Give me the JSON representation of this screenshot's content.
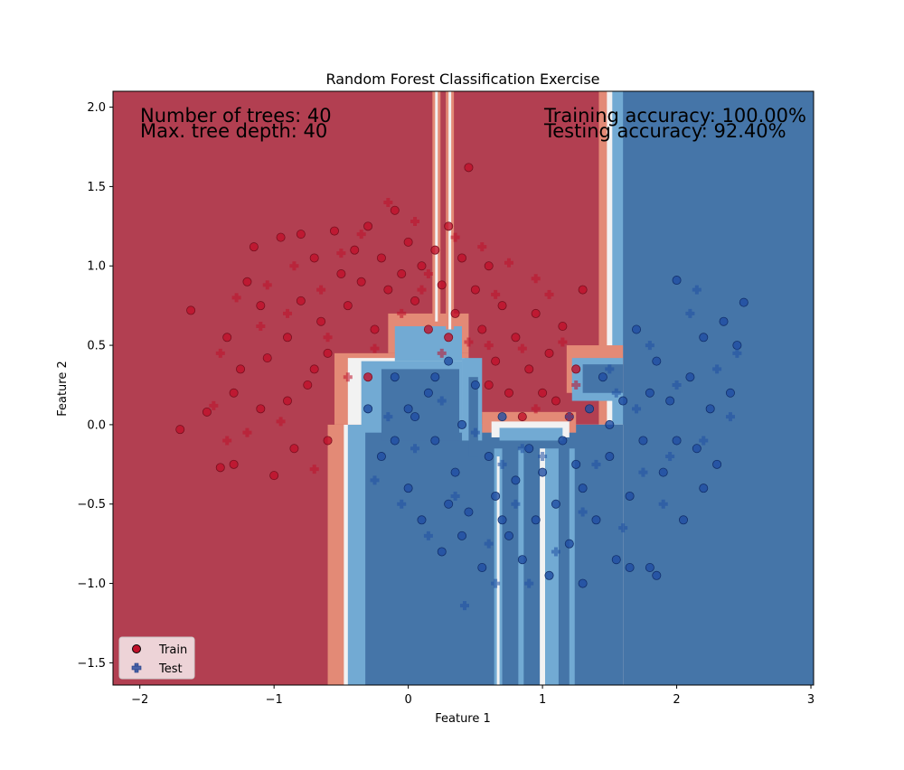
{
  "chart_data": {
    "type": "scatter",
    "title": "Random Forest Classification Exercise",
    "xlabel": "Feature 1",
    "ylabel": "Feature 2",
    "xlim": [
      -2.2,
      3.02
    ],
    "ylim": [
      -1.64,
      2.1
    ],
    "x_ticks": [
      -2,
      -1,
      0,
      1,
      2,
      3
    ],
    "x_tick_labels": [
      "−2",
      "−1",
      "0",
      "1",
      "2",
      "3"
    ],
    "y_ticks": [
      -1.5,
      -1.0,
      -0.5,
      0.0,
      0.5,
      1.0,
      1.5,
      2.0
    ],
    "y_tick_labels": [
      "−1.5",
      "−1.0",
      "−0.5",
      "0.0",
      "0.5",
      "1.0",
      "1.5",
      "2.0"
    ],
    "grid": false,
    "legend_position": "lower-left",
    "annotations": {
      "trees": "Number of trees: 40",
      "depth": "Max. tree depth: 40",
      "train_acc": "Training accuracy: 100.00%",
      "test_acc": "Testing accuracy: 92.40%"
    },
    "colors": {
      "red_region": "#b23f51",
      "blue_region": "#4575a8",
      "red_point": "#c0102a",
      "blue_point": "#1f4ea3",
      "light_red": "#e38a76",
      "light_blue": "#72aad3",
      "white_band": "#f2f2f2"
    },
    "series": [
      {
        "name": "Train",
        "marker": "circle",
        "class0_points": [
          [
            -1.7,
            -0.03
          ],
          [
            -1.62,
            0.72
          ],
          [
            -1.5,
            0.08
          ],
          [
            -1.4,
            -0.27
          ],
          [
            -1.35,
            0.55
          ],
          [
            -1.3,
            -0.25
          ],
          [
            -1.25,
            0.35
          ],
          [
            -1.2,
            0.9
          ],
          [
            -1.15,
            1.12
          ],
          [
            -1.1,
            0.1
          ],
          [
            -1.05,
            0.42
          ],
          [
            -1.0,
            -0.32
          ],
          [
            -0.95,
            1.18
          ],
          [
            -0.9,
            0.55
          ],
          [
            -0.85,
            -0.15
          ],
          [
            -0.8,
            0.78
          ],
          [
            -0.75,
            0.25
          ],
          [
            -0.7,
            1.05
          ],
          [
            -0.65,
            0.65
          ],
          [
            -0.6,
            0.45
          ],
          [
            -0.55,
            1.22
          ],
          [
            -0.5,
            0.95
          ],
          [
            -0.45,
            0.75
          ],
          [
            -0.4,
            1.1
          ],
          [
            -0.35,
            0.9
          ],
          [
            -0.3,
            1.25
          ],
          [
            -0.25,
            0.6
          ],
          [
            -0.2,
            1.05
          ],
          [
            -0.15,
            0.85
          ],
          [
            -0.1,
            1.35
          ],
          [
            -0.05,
            0.95
          ],
          [
            0.0,
            1.15
          ],
          [
            0.05,
            0.78
          ],
          [
            0.1,
            1.0
          ],
          [
            0.15,
            0.6
          ],
          [
            0.2,
            1.1
          ],
          [
            0.25,
            0.88
          ],
          [
            0.3,
            1.25
          ],
          [
            0.35,
            0.7
          ],
          [
            0.4,
            1.05
          ],
          [
            0.45,
            1.62
          ],
          [
            0.5,
            0.85
          ],
          [
            0.55,
            0.6
          ],
          [
            0.6,
            1.0
          ],
          [
            0.65,
            0.4
          ],
          [
            0.7,
            0.75
          ],
          [
            0.75,
            0.2
          ],
          [
            0.8,
            0.55
          ],
          [
            0.85,
            0.05
          ],
          [
            0.9,
            0.35
          ],
          [
            0.95,
            0.7
          ],
          [
            1.0,
            0.2
          ],
          [
            1.05,
            0.45
          ],
          [
            1.1,
            0.15
          ],
          [
            1.15,
            0.62
          ],
          [
            1.2,
            0.05
          ],
          [
            1.25,
            0.35
          ],
          [
            1.3,
            0.85
          ],
          [
            -0.9,
            0.15
          ],
          [
            -1.1,
            0.75
          ],
          [
            -0.6,
            -0.1
          ],
          [
            -0.3,
            0.3
          ],
          [
            -0.8,
            1.2
          ],
          [
            0.3,
            0.55
          ],
          [
            0.6,
            0.25
          ],
          [
            -1.3,
            0.2
          ],
          [
            -0.7,
            0.35
          ]
        ],
        "class1_points": [
          [
            -0.3,
            0.1
          ],
          [
            -0.2,
            -0.2
          ],
          [
            -0.1,
            0.3
          ],
          [
            0.0,
            -0.4
          ],
          [
            0.05,
            0.05
          ],
          [
            0.1,
            -0.6
          ],
          [
            0.15,
            0.2
          ],
          [
            0.2,
            -0.1
          ],
          [
            0.25,
            -0.8
          ],
          [
            0.3,
            0.4
          ],
          [
            0.35,
            -0.3
          ],
          [
            0.4,
            0.0
          ],
          [
            0.45,
            -0.55
          ],
          [
            0.5,
            0.25
          ],
          [
            0.55,
            -0.9
          ],
          [
            0.6,
            -0.2
          ],
          [
            0.65,
            -0.45
          ],
          [
            0.7,
            0.05
          ],
          [
            0.75,
            -0.7
          ],
          [
            0.8,
            -0.35
          ],
          [
            0.85,
            -0.85
          ],
          [
            0.9,
            -0.15
          ],
          [
            0.95,
            -0.6
          ],
          [
            1.0,
            -0.3
          ],
          [
            1.05,
            -0.95
          ],
          [
            1.1,
            -0.5
          ],
          [
            1.15,
            -0.1
          ],
          [
            1.2,
            -0.75
          ],
          [
            1.25,
            -0.25
          ],
          [
            1.3,
            -0.4
          ],
          [
            1.35,
            0.1
          ],
          [
            1.4,
            -0.6
          ],
          [
            1.45,
            0.3
          ],
          [
            1.5,
            -0.2
          ],
          [
            1.55,
            -0.85
          ],
          [
            1.6,
            0.15
          ],
          [
            1.65,
            -0.45
          ],
          [
            1.7,
            0.6
          ],
          [
            1.75,
            -0.1
          ],
          [
            1.8,
            -0.9
          ],
          [
            1.85,
            0.4
          ],
          [
            1.9,
            -0.3
          ],
          [
            1.95,
            0.15
          ],
          [
            2.0,
            0.91
          ],
          [
            2.05,
            -0.6
          ],
          [
            2.1,
            0.3
          ],
          [
            2.15,
            -0.15
          ],
          [
            2.2,
            0.55
          ],
          [
            2.25,
            0.1
          ],
          [
            2.3,
            -0.25
          ],
          [
            2.35,
            0.65
          ],
          [
            2.4,
            0.2
          ],
          [
            2.45,
            0.5
          ],
          [
            2.5,
            0.77
          ],
          [
            -0.1,
            -0.1
          ],
          [
            0.2,
            0.3
          ],
          [
            0.7,
            -0.6
          ],
          [
            1.3,
            -1.0
          ],
          [
            1.85,
            -0.95
          ],
          [
            1.65,
            -0.9
          ],
          [
            2.2,
            -0.4
          ],
          [
            0.0,
            0.1
          ],
          [
            0.4,
            -0.7
          ],
          [
            1.5,
            0.0
          ],
          [
            1.8,
            0.2
          ],
          [
            2.0,
            -0.1
          ],
          [
            0.3,
            -0.5
          ]
        ]
      },
      {
        "name": "Test",
        "marker": "plus",
        "class0_points": [
          [
            -1.45,
            0.12
          ],
          [
            -1.4,
            0.45
          ],
          [
            -1.28,
            0.8
          ],
          [
            -1.2,
            -0.05
          ],
          [
            -1.1,
            0.62
          ],
          [
            -1.05,
            0.88
          ],
          [
            -0.95,
            0.02
          ],
          [
            -0.85,
            1.0
          ],
          [
            -0.7,
            -0.28
          ],
          [
            -0.65,
            0.85
          ],
          [
            -0.5,
            1.08
          ],
          [
            -0.45,
            0.3
          ],
          [
            -0.35,
            1.2
          ],
          [
            -0.25,
            0.48
          ],
          [
            -0.15,
            1.4
          ],
          [
            -0.05,
            0.7
          ],
          [
            0.05,
            1.28
          ],
          [
            0.15,
            0.95
          ],
          [
            0.25,
            0.45
          ],
          [
            0.35,
            1.18
          ],
          [
            0.45,
            0.52
          ],
          [
            0.55,
            1.12
          ],
          [
            0.65,
            0.82
          ],
          [
            0.75,
            1.02
          ],
          [
            0.85,
            0.48
          ],
          [
            0.95,
            0.92
          ],
          [
            1.05,
            0.82
          ],
          [
            1.15,
            0.52
          ],
          [
            1.25,
            0.25
          ],
          [
            -1.35,
            -0.1
          ],
          [
            -0.9,
            0.7
          ],
          [
            -0.6,
            0.55
          ],
          [
            0.1,
            0.85
          ],
          [
            0.6,
            0.5
          ],
          [
            0.95,
            0.1
          ]
        ],
        "class1_points": [
          [
            -0.25,
            -0.35
          ],
          [
            -0.15,
            0.05
          ],
          [
            -0.05,
            -0.5
          ],
          [
            0.05,
            -0.15
          ],
          [
            0.15,
            -0.7
          ],
          [
            0.25,
            0.15
          ],
          [
            0.35,
            -0.45
          ],
          [
            0.42,
            -1.14
          ],
          [
            0.5,
            -0.05
          ],
          [
            0.6,
            -0.75
          ],
          [
            0.7,
            -0.25
          ],
          [
            0.8,
            -0.5
          ],
          [
            0.9,
            -1.0
          ],
          [
            1.0,
            -0.2
          ],
          [
            1.1,
            -0.8
          ],
          [
            1.2,
            0.05
          ],
          [
            1.3,
            -0.55
          ],
          [
            1.4,
            -0.25
          ],
          [
            1.5,
            0.35
          ],
          [
            1.6,
            -0.65
          ],
          [
            1.7,
            0.1
          ],
          [
            1.8,
            0.5
          ],
          [
            1.9,
            -0.5
          ],
          [
            2.0,
            0.25
          ],
          [
            2.1,
            0.7
          ],
          [
            2.2,
            -0.1
          ],
          [
            2.3,
            0.35
          ],
          [
            2.4,
            0.05
          ],
          [
            2.45,
            0.45
          ],
          [
            1.75,
            -0.3
          ],
          [
            1.55,
            0.2
          ],
          [
            2.15,
            0.85
          ],
          [
            0.65,
            -1.0
          ],
          [
            0.85,
            -0.15
          ],
          [
            1.95,
            -0.2
          ]
        ]
      }
    ]
  }
}
